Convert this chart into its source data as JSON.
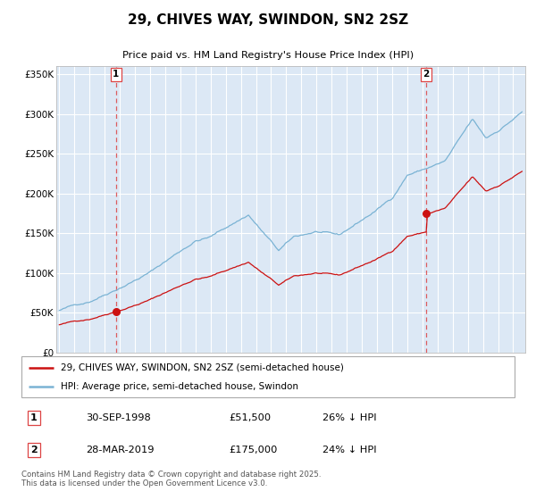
{
  "title": "29, CHIVES WAY, SWINDON, SN2 2SZ",
  "subtitle": "Price paid vs. HM Land Registry's House Price Index (HPI)",
  "bg_color": "#dce8f5",
  "grid_color": "#ffffff",
  "fig_bg_color": "#ffffff",
  "hpi_color": "#7ab3d4",
  "price_color": "#cc1111",
  "vline_color": "#dd4444",
  "purchase1_date": 1998.75,
  "purchase1_price": 51500,
  "purchase2_date": 2019.25,
  "purchase2_price": 175000,
  "ylim": [
    0,
    360000
  ],
  "xlim": [
    1994.8,
    2025.8
  ],
  "yticks": [
    0,
    50000,
    100000,
    150000,
    200000,
    250000,
    300000,
    350000
  ],
  "yticklabels": [
    "£0",
    "£50K",
    "£100K",
    "£150K",
    "£200K",
    "£250K",
    "£300K",
    "£350K"
  ],
  "legend_label1": "29, CHIVES WAY, SWINDON, SN2 2SZ (semi-detached house)",
  "legend_label2": "HPI: Average price, semi-detached house, Swindon",
  "footnote": "Contains HM Land Registry data © Crown copyright and database right 2025.\nThis data is licensed under the Open Government Licence v3.0.",
  "table_row1": [
    "1",
    "30-SEP-1998",
    "£51,500",
    "26% ↓ HPI"
  ],
  "table_row2": [
    "2",
    "28-MAR-2019",
    "£175,000",
    "24% ↓ HPI"
  ]
}
